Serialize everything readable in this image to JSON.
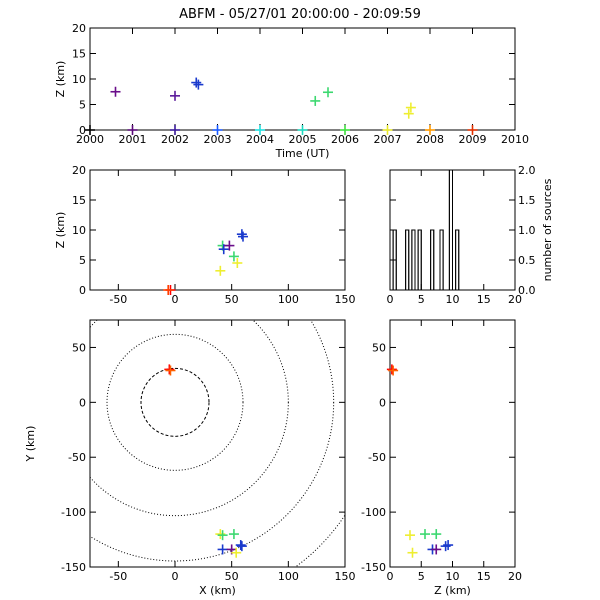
{
  "title": "ABFM - 05/27/01 20:00:00 - 20:09:59",
  "chart_data": [
    {
      "id": "time_height",
      "type": "scatter",
      "xlabel": "Time (UT)",
      "ylabel": "Z (km)",
      "xlim": [
        2000,
        2010
      ],
      "ylim": [
        0,
        20
      ],
      "xticks": [
        2000,
        2001,
        2002,
        2003,
        2004,
        2005,
        2006,
        2007,
        2008,
        2009,
        2010
      ],
      "xtick_labels": [
        "2000",
        "2001",
        "2002",
        "2003",
        "2004",
        "2005",
        "2006",
        "2007",
        "2008",
        "2009",
        "2010"
      ],
      "yticks": [
        0,
        5,
        10,
        15,
        20
      ],
      "ytick_labels": [
        "0",
        "5",
        "10",
        "15",
        "20"
      ],
      "points": [
        {
          "x": 2000.6,
          "y": 7.5,
          "color": "#6a0d8a"
        },
        {
          "x": 2002.0,
          "y": 6.7,
          "color": "#5a1a9a"
        },
        {
          "x": 2002.5,
          "y": 9.3,
          "color": "#1a3acd"
        },
        {
          "x": 2002.55,
          "y": 8.9,
          "color": "#1a3acd"
        },
        {
          "x": 2005.3,
          "y": 5.7,
          "color": "#3cd870"
        },
        {
          "x": 2005.6,
          "y": 7.4,
          "color": "#3cd870"
        },
        {
          "x": 2007.55,
          "y": 4.4,
          "color": "#eeee30"
        },
        {
          "x": 2007.5,
          "y": 3.2,
          "color": "#eeee30"
        }
      ],
      "baseline_points": [
        {
          "x": 2000.0,
          "y": 0,
          "color": "#000000"
        },
        {
          "x": 2001.0,
          "y": 0,
          "color": "#5a0a7a"
        },
        {
          "x": 2002.0,
          "y": 0,
          "color": "#3a1a9a"
        },
        {
          "x": 2003.0,
          "y": 0,
          "color": "#1a5aff"
        },
        {
          "x": 2004.0,
          "y": 0,
          "color": "#20e0e0"
        },
        {
          "x": 2005.0,
          "y": 0,
          "color": "#20d8c0"
        },
        {
          "x": 2006.0,
          "y": 0,
          "color": "#40e040"
        },
        {
          "x": 2007.0,
          "y": 0,
          "color": "#e8e830"
        },
        {
          "x": 2008.0,
          "y": 0,
          "color": "#ff9a00"
        },
        {
          "x": 2009.0,
          "y": 0,
          "color": "#e03000"
        }
      ]
    },
    {
      "id": "x_height",
      "type": "scatter",
      "xlabel": "",
      "ylabel": "Z (km)",
      "xlim": [
        -75,
        150
      ],
      "ylim": [
        0,
        20
      ],
      "xticks": [
        -50,
        0,
        50,
        100,
        150
      ],
      "xtick_labels": [
        "-50",
        "0",
        "50",
        "100",
        "150"
      ],
      "yticks": [
        0,
        5,
        10,
        15,
        20
      ],
      "ytick_labels": [
        "0",
        "5",
        "10",
        "15",
        "20"
      ],
      "points": [
        {
          "x": -4,
          "y": 0,
          "color": "#ff0000"
        },
        {
          "x": -6,
          "y": 0,
          "color": "#ff4000"
        },
        {
          "x": 40,
          "y": 3.2,
          "color": "#eeee30"
        },
        {
          "x": 42,
          "y": 7.4,
          "color": "#3cd870"
        },
        {
          "x": 43,
          "y": 6.8,
          "color": "#1a3acd"
        },
        {
          "x": 48,
          "y": 7.4,
          "color": "#6a0d8a"
        },
        {
          "x": 52,
          "y": 5.6,
          "color": "#3cd870"
        },
        {
          "x": 55,
          "y": 4.5,
          "color": "#eeee30"
        },
        {
          "x": 59,
          "y": 9.3,
          "color": "#1a3acd"
        },
        {
          "x": 60,
          "y": 8.9,
          "color": "#1a3acd"
        }
      ]
    },
    {
      "id": "histogram",
      "type": "bar",
      "xlabel": "",
      "ylabel": "number of sources",
      "xlim": [
        0,
        20
      ],
      "ylim": [
        0,
        2
      ],
      "xticks": [
        0,
        5,
        10,
        15,
        20
      ],
      "xtick_labels": [
        "0",
        "5",
        "10",
        "15",
        "20"
      ],
      "yticks": [
        0,
        0.5,
        1.0,
        1.5,
        2.0
      ],
      "ytick_labels": [
        "0.0",
        "0.5",
        "1.0",
        "1.5",
        "2.0"
      ],
      "bins": [
        {
          "x0": 0,
          "x1": 0.5,
          "count": 0
        },
        {
          "x0": 0.5,
          "x1": 1,
          "count": 1
        },
        {
          "x0": 1,
          "x1": 2.5,
          "count": 0
        },
        {
          "x0": 2.5,
          "x1": 3,
          "count": 1
        },
        {
          "x0": 3,
          "x1": 3.5,
          "count": 0
        },
        {
          "x0": 3.5,
          "x1": 4,
          "count": 1
        },
        {
          "x0": 4,
          "x1": 4.5,
          "count": 0
        },
        {
          "x0": 4.5,
          "x1": 5,
          "count": 1
        },
        {
          "x0": 5,
          "x1": 6.5,
          "count": 0
        },
        {
          "x0": 6.5,
          "x1": 7,
          "count": 1
        },
        {
          "x0": 7,
          "x1": 8,
          "count": 0
        },
        {
          "x0": 8,
          "x1": 8.5,
          "count": 1
        },
        {
          "x0": 8.5,
          "x1": 9.5,
          "count": 0
        },
        {
          "x0": 9.5,
          "x1": 10,
          "count": 2
        },
        {
          "x0": 10,
          "x1": 10.5,
          "count": 0
        },
        {
          "x0": 10.5,
          "x1": 11,
          "count": 1
        },
        {
          "x0": 11,
          "x1": 20,
          "count": 0
        }
      ]
    },
    {
      "id": "plan_view",
      "type": "scatter",
      "xlabel": "X (km)",
      "ylabel": "Y (km)",
      "xlim": [
        -75,
        150
      ],
      "ylim": [
        -150,
        75
      ],
      "xticks": [
        -50,
        0,
        50,
        100,
        150
      ],
      "xtick_labels": [
        "-50",
        "0",
        "50",
        "100",
        "150"
      ],
      "yticks": [
        -150,
        -100,
        -50,
        0,
        50
      ],
      "ytick_labels": [
        "-150",
        "-100",
        "-50",
        "0",
        "50"
      ],
      "range_rings_km": [
        30,
        60,
        100,
        140,
        180
      ],
      "points": [
        {
          "x": -5,
          "y": 30,
          "color": "#ff0000"
        },
        {
          "x": -4,
          "y": 29,
          "color": "#ff6000"
        },
        {
          "x": 40,
          "y": -120,
          "color": "#eeee30"
        },
        {
          "x": 42,
          "y": -121,
          "color": "#3cd870"
        },
        {
          "x": 52,
          "y": -120,
          "color": "#3cd870"
        },
        {
          "x": 42,
          "y": -134,
          "color": "#1a3acd"
        },
        {
          "x": 50,
          "y": -134,
          "color": "#6a0d8a"
        },
        {
          "x": 54,
          "y": -137,
          "color": "#eeee30"
        },
        {
          "x": 58,
          "y": -130,
          "color": "#1a3acd"
        },
        {
          "x": 59,
          "y": -131,
          "color": "#1a3acd"
        }
      ]
    },
    {
      "id": "z_y",
      "type": "scatter",
      "xlabel": "Z (km)",
      "ylabel": "",
      "xlim": [
        0,
        20
      ],
      "ylim": [
        -150,
        75
      ],
      "xticks": [
        0,
        5,
        10,
        15,
        20
      ],
      "xtick_labels": [
        "0",
        "5",
        "10",
        "15",
        "20"
      ],
      "yticks": [
        -150,
        -100,
        -50,
        0,
        50
      ],
      "ytick_labels": [
        "-150",
        "-100",
        "-50",
        "0",
        "50"
      ],
      "points": [
        {
          "x": 0.3,
          "y": 30,
          "color": "#ff0000"
        },
        {
          "x": 0.5,
          "y": 29,
          "color": "#ff6000"
        },
        {
          "x": 3.2,
          "y": -121,
          "color": "#eeee30"
        },
        {
          "x": 3.6,
          "y": -137,
          "color": "#eeee30"
        },
        {
          "x": 5.6,
          "y": -120,
          "color": "#3cd870"
        },
        {
          "x": 6.8,
          "y": -134,
          "color": "#1a3acd"
        },
        {
          "x": 7.4,
          "y": -120,
          "color": "#3cd870"
        },
        {
          "x": 7.4,
          "y": -134,
          "color": "#6a0d8a"
        },
        {
          "x": 8.9,
          "y": -131,
          "color": "#1a3acd"
        },
        {
          "x": 9.3,
          "y": -130,
          "color": "#1a3acd"
        }
      ]
    }
  ]
}
